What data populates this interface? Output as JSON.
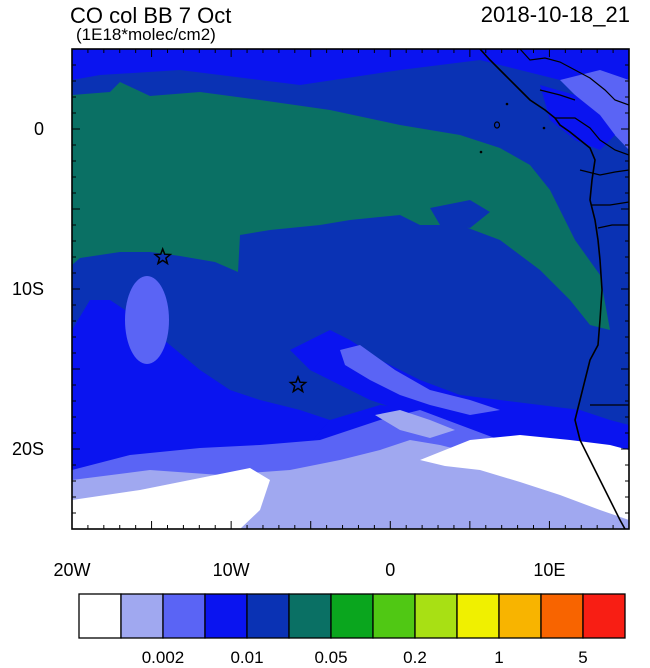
{
  "header": {
    "title": "CO col BB 7 Oct",
    "units": "(1E18*molec/cm2)",
    "timestamp": "2018-10-18_21"
  },
  "map": {
    "x_ticks": [
      {
        "lon": -20,
        "label": "20W"
      },
      {
        "lon": -10,
        "label": "10W"
      },
      {
        "lon": 0,
        "label": "0"
      },
      {
        "lon": 10,
        "label": "10E"
      }
    ],
    "y_ticks": [
      {
        "lat": 0,
        "label": "0"
      },
      {
        "lat": -10,
        "label": "10S"
      },
      {
        "lat": -20,
        "label": "20S"
      }
    ],
    "extent": {
      "lon_min": -20,
      "lon_max": 15,
      "lat_min": -25,
      "lat_max": 5
    },
    "markers": [
      {
        "type": "star",
        "lon": -14.3,
        "lat": -8.0
      },
      {
        "type": "star",
        "lon": -5.8,
        "lat": -16.0
      }
    ]
  },
  "colorbar": {
    "colors": [
      "#ffffff",
      "#a0a8f0",
      "#5a64f5",
      "#0a14f0",
      "#0a32b4",
      "#0a7064",
      "#0aa61e",
      "#50c814",
      "#a8e014",
      "#f0f000",
      "#f8b400",
      "#f86400",
      "#f81e14"
    ],
    "labels": [
      {
        "after_box": 2,
        "text": "0.002"
      },
      {
        "after_box": 4,
        "text": "0.01"
      },
      {
        "after_box": 6,
        "text": "0.05"
      },
      {
        "after_box": 8,
        "text": "0.2"
      },
      {
        "after_box": 10,
        "text": "1"
      },
      {
        "after_box": 12,
        "text": "5"
      }
    ]
  }
}
